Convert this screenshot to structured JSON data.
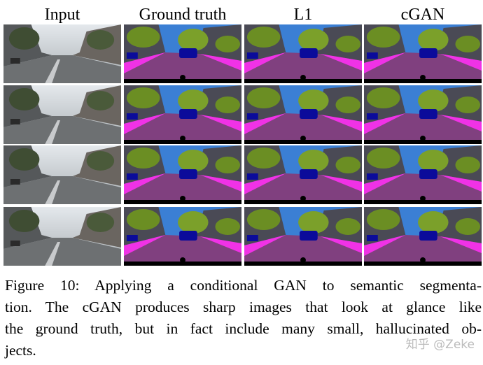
{
  "figure": {
    "columns": [
      "Input",
      "Ground truth",
      "L1",
      "cGAN"
    ],
    "caption_lines": [
      "Figure 10: Applying a conditional GAN to semantic segmenta-",
      "tion.  The cGAN produces sharp images that look at glance like",
      "the ground truth, but in fact include many small, hallucinated ob-",
      "jects."
    ],
    "watermark": "知乎 @Zeke"
  }
}
